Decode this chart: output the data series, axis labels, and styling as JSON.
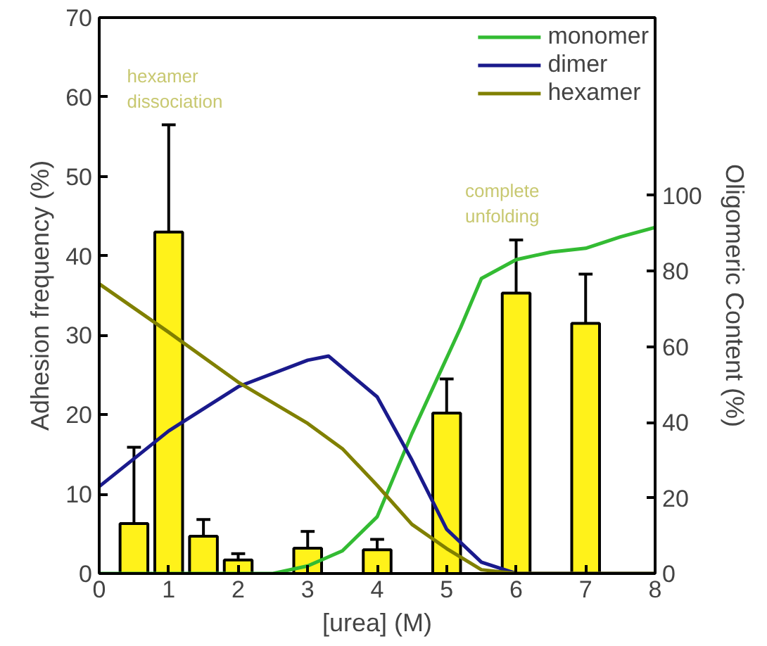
{
  "chart_data": {
    "type": "bar",
    "xlabel": "[urea] (M)",
    "ylabel": "Adhesion frequency (%)",
    "y2label": "Oligomeric Content (%)",
    "x": [
      0.5,
      1,
      1.5,
      2,
      3,
      4,
      5,
      6,
      7
    ],
    "xlim": [
      0,
      8
    ],
    "xticks": [
      0,
      1,
      2,
      3,
      4,
      5,
      6,
      7,
      8
    ],
    "ylim": [
      0,
      70
    ],
    "yticks": [
      0,
      10,
      20,
      30,
      40,
      50,
      60,
      70
    ],
    "y2lim": [
      0,
      147
    ],
    "y2ticks": [
      0,
      20,
      40,
      60,
      80,
      100
    ],
    "grid": false,
    "legend": "top right",
    "series": [
      {
        "color": "#fff21a",
        "values": [
          6.3,
          43,
          4.7,
          1.7,
          3.2,
          3,
          20.2,
          35.3,
          31.5
        ],
        "errors": [
          [
            6.3,
            15.9
          ],
          [
            43,
            56.5
          ],
          [
            4.7,
            6.8
          ],
          [
            1.7,
            2.5
          ],
          [
            3.2,
            5.3
          ],
          [
            3,
            4.3
          ],
          [
            20.2,
            24.5
          ],
          [
            35.3,
            42
          ],
          [
            31.5,
            37.7
          ]
        ]
      },
      {
        "type": "line",
        "axis": "y2",
        "name": "monomer",
        "color": "#33bb33",
        "x": [
          0,
          2.5,
          3,
          3.5,
          4,
          4.5,
          5,
          5.2,
          5.5,
          6,
          6.5,
          7,
          7.5,
          8
        ],
        "values": [
          0,
          0,
          2,
          6,
          15,
          37,
          57,
          65,
          78,
          83,
          85,
          86,
          89,
          91.5
        ]
      },
      {
        "type": "line",
        "axis": "y2",
        "name": "dimer",
        "color": "#1a1a8c",
        "x": [
          0,
          1,
          2,
          3,
          3.3,
          4,
          4.5,
          5,
          5.5,
          6,
          7,
          8
        ],
        "values": [
          23,
          37.7,
          49.4,
          56.4,
          57.5,
          46.7,
          30,
          11.7,
          3,
          0,
          0,
          0
        ]
      },
      {
        "type": "line",
        "axis": "y2",
        "name": "hexamer",
        "color": "#808000",
        "x": [
          0,
          1,
          2,
          3,
          3.5,
          4,
          4.5,
          5,
          5.5,
          6,
          7,
          8
        ],
        "values": [
          76.6,
          63.8,
          50.6,
          39.7,
          33,
          23.3,
          13,
          6.6,
          1,
          0,
          0,
          0
        ]
      }
    ],
    "annotations": [
      "hexamer\ndissociation",
      "complete\nunfolding"
    ]
  }
}
